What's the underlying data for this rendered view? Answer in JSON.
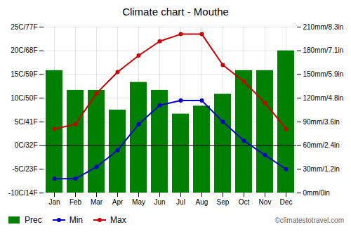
{
  "chart_data": {
    "type": "bar",
    "title": "Climate chart - Mouthe",
    "categories": [
      "Jan",
      "Feb",
      "Mar",
      "Apr",
      "May",
      "Jun",
      "Jul",
      "Aug",
      "Sep",
      "Oct",
      "Nov",
      "Dec"
    ],
    "series": [
      {
        "name": "Prec",
        "type": "bar",
        "axis": "y2",
        "color": "#008000",
        "values": [
          155,
          130,
          130,
          105,
          140,
          130,
          100,
          110,
          125,
          155,
          155,
          180
        ]
      },
      {
        "name": "Min",
        "type": "line",
        "color": "#0000cc",
        "marker": "circle",
        "values": [
          -7,
          -7,
          -4.5,
          -1,
          4.5,
          8.5,
          9.5,
          9.5,
          5,
          1,
          -2,
          -5
        ]
      },
      {
        "name": "Max",
        "type": "line",
        "color": "#cc0000",
        "marker": "circle",
        "values": [
          3.5,
          4.5,
          11,
          15.5,
          19,
          22,
          23.5,
          23.5,
          17,
          13.5,
          9,
          3.5
        ]
      }
    ],
    "ylim": [
      -10,
      25
    ],
    "yticks": [
      {
        "value": -10,
        "label": "-10C/14F"
      },
      {
        "value": -5,
        "label": "-5C/23F"
      },
      {
        "value": 0,
        "label": "0C/32F"
      },
      {
        "value": 5,
        "label": "5C/41F"
      },
      {
        "value": 10,
        "label": "10C/50F"
      },
      {
        "value": 15,
        "label": "15C/59F"
      },
      {
        "value": 20,
        "label": "20C/68F"
      },
      {
        "value": 25,
        "label": "25C/77F"
      }
    ],
    "y2lim": [
      0,
      210
    ],
    "y2ticks": [
      {
        "value": 0,
        "label": "0mm/0in"
      },
      {
        "value": 30,
        "label": "30mm/1.2in"
      },
      {
        "value": 60,
        "label": "60mm/2.4in"
      },
      {
        "value": 90,
        "label": "90mm/3.6in"
      },
      {
        "value": 120,
        "label": "120mm/4.8in"
      },
      {
        "value": 150,
        "label": "150mm/5.9in"
      },
      {
        "value": 180,
        "label": "180mm/7.1in"
      },
      {
        "value": 210,
        "label": "210mm/8.3in"
      }
    ],
    "grid": true,
    "legend": "lower left",
    "hlines": [
      0
    ],
    "annotations": [
      "©climatestotravel.com"
    ]
  }
}
